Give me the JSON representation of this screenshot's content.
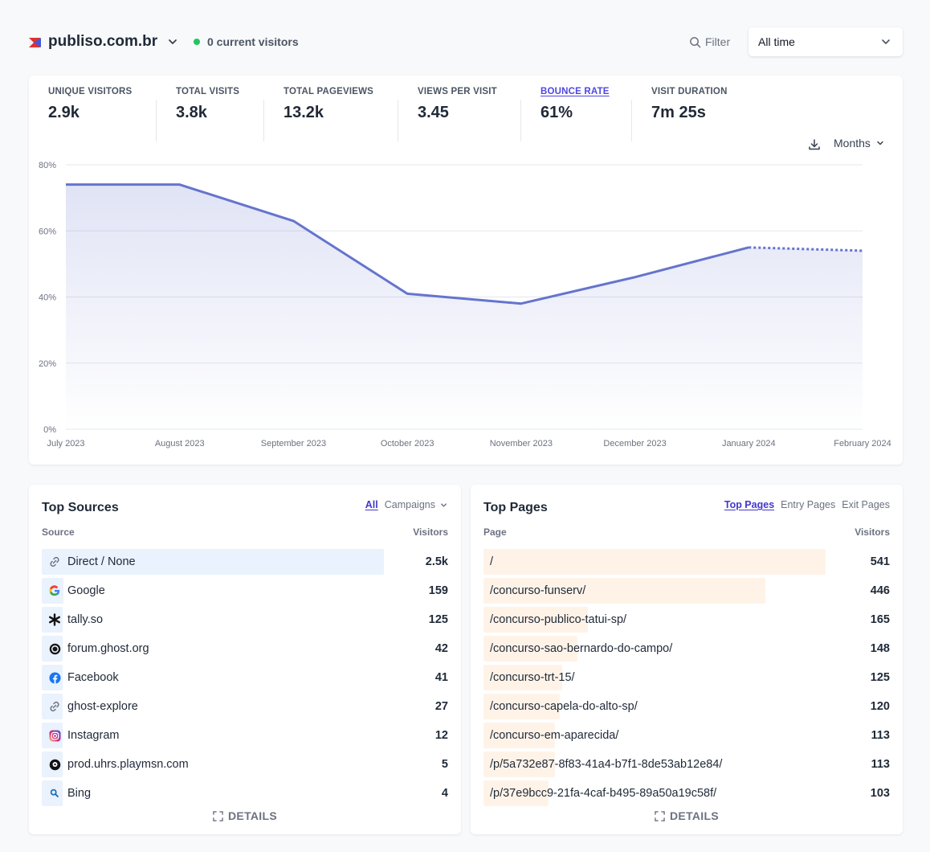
{
  "header": {
    "site_name": "publiso.com.br",
    "current_visitors": "0 current visitors",
    "filter_label": "Filter",
    "period_label": "All time"
  },
  "metrics": [
    {
      "label": "UNIQUE VISITORS",
      "value": "2.9k"
    },
    {
      "label": "TOTAL VISITS",
      "value": "3.8k"
    },
    {
      "label": "TOTAL PAGEVIEWS",
      "value": "13.2k"
    },
    {
      "label": "VIEWS PER VISIT",
      "value": "3.45"
    },
    {
      "label": "BOUNCE RATE",
      "value": "61%"
    },
    {
      "label": "VISIT DURATION",
      "value": "7m 25s"
    }
  ],
  "interval_label": "Months",
  "colors": {
    "accent": "#4f46e5",
    "line": "#6574cd",
    "live": "#22c55e"
  },
  "chart_data": {
    "type": "line",
    "categories": [
      "July 2023",
      "August 2023",
      "September 2023",
      "October 2023",
      "November 2023",
      "December 2023",
      "January 2024",
      "February 2024"
    ],
    "values": [
      74,
      74,
      63,
      41,
      38,
      46,
      55,
      54
    ],
    "incomplete_last_point": true,
    "yticks": [
      "0%",
      "20%",
      "40%",
      "60%",
      "80%"
    ],
    "ylim": [
      0,
      80
    ],
    "grid": true
  },
  "sources": {
    "title": "Top Sources",
    "tabs": [
      "All",
      "Campaigns"
    ],
    "col_source": "Source",
    "col_visitors": "Visitors",
    "details_label": "DETAILS",
    "rows": [
      {
        "label": "Direct / None",
        "value": "2.5k",
        "fraction": 1.0,
        "icon": "link-icon"
      },
      {
        "label": "Google",
        "value": "159",
        "fraction": 0.064,
        "icon": "google-icon"
      },
      {
        "label": "tally.so",
        "value": "125",
        "fraction": 0.05,
        "icon": "tally-icon"
      },
      {
        "label": "forum.ghost.org",
        "value": "42",
        "fraction": 0.017,
        "icon": "ghost-icon"
      },
      {
        "label": "Facebook",
        "value": "41",
        "fraction": 0.016,
        "icon": "facebook-icon"
      },
      {
        "label": "ghost-explore",
        "value": "27",
        "fraction": 0.011,
        "icon": "link-icon"
      },
      {
        "label": "Instagram",
        "value": "12",
        "fraction": 0.005,
        "icon": "instagram-icon"
      },
      {
        "label": "prod.uhrs.playmsn.com",
        "value": "5",
        "fraction": 0.002,
        "icon": "playmsn-icon"
      },
      {
        "label": "Bing",
        "value": "4",
        "fraction": 0.002,
        "icon": "bing-icon"
      }
    ]
  },
  "pages": {
    "title": "Top Pages",
    "tabs": [
      "Top Pages",
      "Entry Pages",
      "Exit Pages"
    ],
    "col_page": "Page",
    "col_visitors": "Visitors",
    "details_label": "DETAILS",
    "rows": [
      {
        "label": "/",
        "value": "541",
        "fraction": 1.0
      },
      {
        "label": "/concurso-funserv/",
        "value": "446",
        "fraction": 0.824
      },
      {
        "label": "/concurso-publico-tatui-sp/",
        "value": "165",
        "fraction": 0.305
      },
      {
        "label": "/concurso-sao-bernardo-do-campo/",
        "value": "148",
        "fraction": 0.274
      },
      {
        "label": "/concurso-trt-15/",
        "value": "125",
        "fraction": 0.231
      },
      {
        "label": "/concurso-capela-do-alto-sp/",
        "value": "120",
        "fraction": 0.222
      },
      {
        "label": "/concurso-em-aparecida/",
        "value": "113",
        "fraction": 0.209
      },
      {
        "label": "/p/5a732e87-8f83-41a4-b7f1-8de53ab12e84/",
        "value": "113",
        "fraction": 0.209
      },
      {
        "label": "/p/37e9bcc9-21fa-4caf-b495-89a50a19c58f/",
        "value": "103",
        "fraction": 0.19
      }
    ]
  }
}
